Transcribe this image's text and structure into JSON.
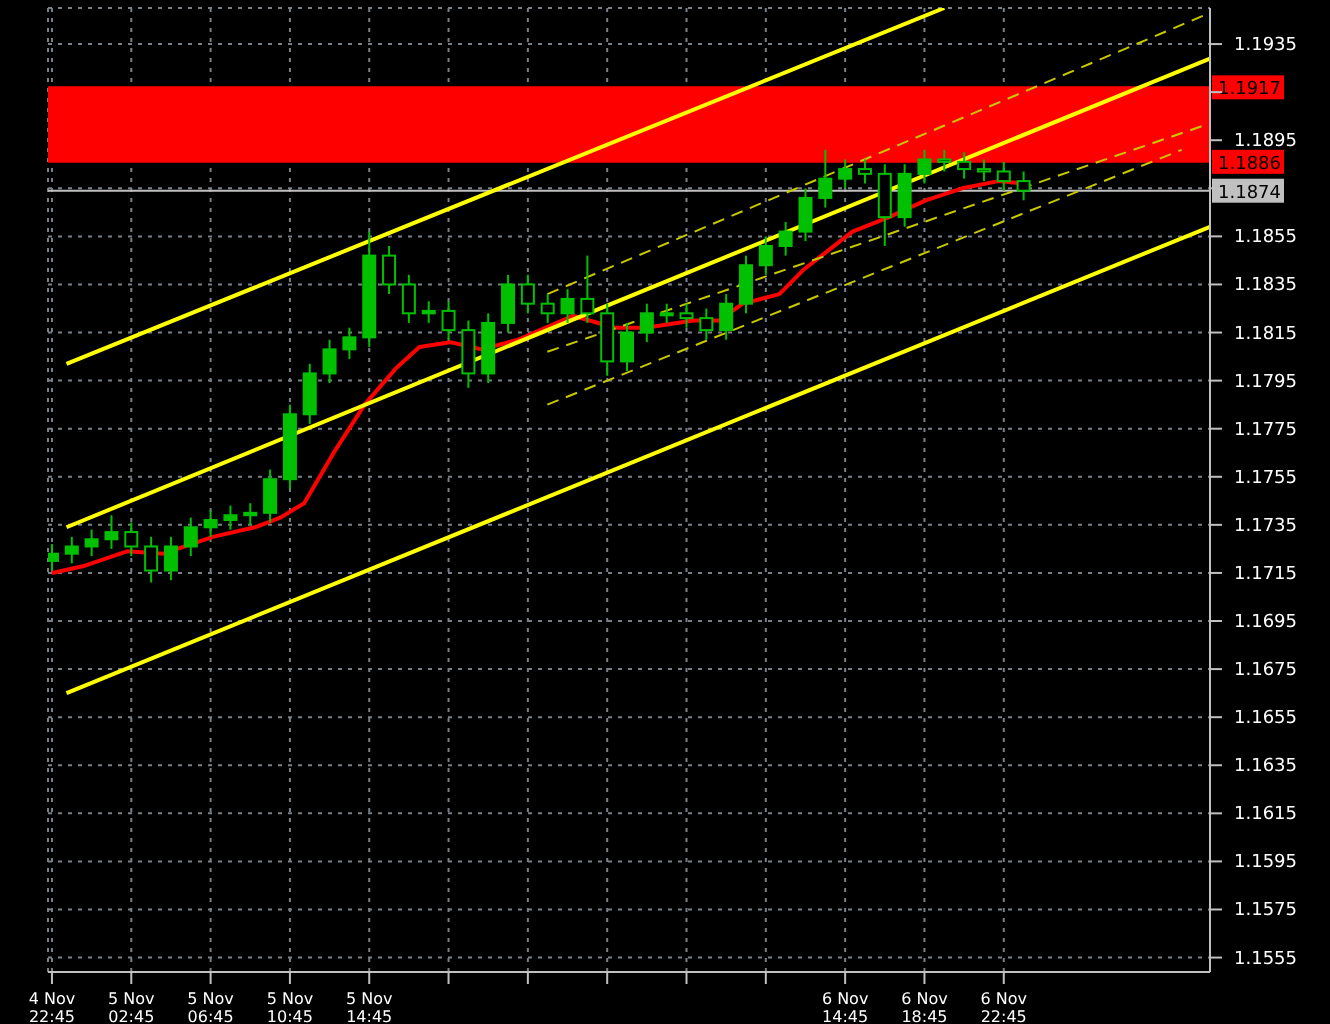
{
  "chart_data": {
    "type": "candlestick",
    "color": "#00c000",
    "grid": true,
    "xlim": [
      "--11-04T22:33",
      "--11-07T09:09"
    ],
    "xticks": [
      {
        "value": "--11-04T22:45",
        "label": "4 Nov 22:45"
      },
      {
        "value": "--11-05T02:45",
        "label": "5 Nov 02:45"
      },
      {
        "value": "--11-05T06:45",
        "label": "5 Nov 06:45"
      },
      {
        "value": "--11-05T10:45",
        "label": "5 Nov 10:45"
      },
      {
        "value": "--11-05T14:45",
        "label": "5 Nov 14:45"
      },
      {
        "value": "--11-05T18:45",
        "label": null
      },
      {
        "value": "--11-05T22:45",
        "label": null
      },
      {
        "value": "--11-06T02:45",
        "label": null
      },
      {
        "value": "--11-06T06:45",
        "label": null
      },
      {
        "value": "--11-06T10:45",
        "label": null
      },
      {
        "value": "--11-06T14:45",
        "label": "6 Nov 14:45"
      },
      {
        "value": "--11-06T18:45",
        "label": "6 Nov 18:45"
      },
      {
        "value": "--11-06T22:45",
        "label": "6 Nov 22:45"
      }
    ],
    "ylim": [
      1.1549,
      1.195
    ],
    "yticks": [
      1.1555,
      1.1575,
      1.1595,
      1.1615,
      1.1635,
      1.1655,
      1.1675,
      1.1695,
      1.1715,
      1.1735,
      1.1755,
      1.1775,
      1.1795,
      1.1815,
      1.1835,
      1.1855,
      {
        "value": 1.1875,
        "label": null
      },
      1.1895,
      {
        "value": 1.1915,
        "label": null
      },
      1.1935
    ],
    "bands": [
      {
        "axis": "y",
        "from": 1.1886,
        "to": 1.1917,
        "color": "#ff0000"
      }
    ],
    "ref_lines": [
      {
        "axis": "y",
        "value": 1.1917,
        "label": "1.1917",
        "color": "#ff0000"
      },
      {
        "axis": "y",
        "value": 1.1886,
        "label": "1.1886",
        "color": "#ff0000"
      },
      {
        "axis": "y",
        "value": 1.1874,
        "label": "1.1874",
        "color": "#c0c0c0"
      }
    ],
    "x": [
      "--11-04T22:45",
      "--11-04T23:45",
      "--11-05T00:45",
      "--11-05T01:45",
      "--11-05T02:45",
      "--11-05T03:45",
      "--11-05T04:45",
      "--11-05T05:45",
      "--11-05T06:45",
      "--11-05T07:45",
      "--11-05T08:45",
      "--11-05T09:45",
      "--11-05T10:45",
      "--11-05T11:45",
      "--11-05T12:45",
      "--11-05T13:45",
      "--11-05T14:45",
      "--11-05T15:45",
      "--11-05T16:45",
      "--11-05T17:45",
      "--11-05T18:45",
      "--11-05T19:45",
      "--11-05T20:45",
      "--11-05T21:45",
      "--11-05T22:45",
      "--11-05T23:45",
      "--11-06T00:45",
      "--11-06T01:45",
      "--11-06T02:45",
      "--11-06T03:45",
      "--11-06T04:45",
      "--11-06T05:45",
      "--11-06T06:45",
      "--11-06T07:45",
      "--11-06T08:45",
      "--11-06T09:45",
      "--11-06T10:45",
      "--11-06T11:45",
      "--11-06T12:45",
      "--11-06T13:45",
      "--11-06T14:45",
      "--11-06T15:45",
      "--11-06T16:45",
      "--11-06T17:45",
      "--11-06T18:45",
      "--11-06T19:45",
      "--11-06T20:45",
      "--11-06T21:45",
      "--11-06T22:45",
      "--11-06T23:45"
    ],
    "ohlc": [
      [
        1.172,
        1.1727,
        1.1716,
        1.1723
      ],
      [
        1.1723,
        1.173,
        1.1719,
        1.1726
      ],
      [
        1.1726,
        1.1733,
        1.1722,
        1.1729
      ],
      [
        1.1729,
        1.1739,
        1.1725,
        1.1732
      ],
      [
        1.1732,
        1.1736,
        1.1722,
        1.1726
      ],
      [
        1.1726,
        1.173,
        1.1711,
        1.1716
      ],
      [
        1.1716,
        1.173,
        1.1712,
        1.1726
      ],
      [
        1.1726,
        1.1738,
        1.1722,
        1.1734
      ],
      [
        1.1734,
        1.1741,
        1.173,
        1.1737
      ],
      [
        1.1737,
        1.1743,
        1.1733,
        1.1739
      ],
      [
        1.1739,
        1.1744,
        1.1735,
        1.174
      ],
      [
        1.174,
        1.1758,
        1.1736,
        1.1754
      ],
      [
        1.1754,
        1.1785,
        1.175,
        1.1781
      ],
      [
        1.1781,
        1.1802,
        1.1777,
        1.1798
      ],
      [
        1.1798,
        1.1812,
        1.1794,
        1.1808
      ],
      [
        1.1808,
        1.1817,
        1.1804,
        1.1813
      ],
      [
        1.1813,
        1.1857,
        1.1809,
        1.1847
      ],
      [
        1.1847,
        1.1851,
        1.1831,
        1.1835
      ],
      [
        1.1835,
        1.1839,
        1.1819,
        1.1823
      ],
      [
        1.1823,
        1.1828,
        1.1819,
        1.1824
      ],
      [
        1.1824,
        1.1828,
        1.1812,
        1.1816
      ],
      [
        1.1816,
        1.182,
        1.1792,
        1.1798
      ],
      [
        1.1798,
        1.1823,
        1.1794,
        1.1819
      ],
      [
        1.1819,
        1.1839,
        1.1815,
        1.1835
      ],
      [
        1.1835,
        1.1839,
        1.1823,
        1.1827
      ],
      [
        1.1827,
        1.1831,
        1.1819,
        1.1823
      ],
      [
        1.1823,
        1.1833,
        1.1819,
        1.1829
      ],
      [
        1.1829,
        1.1847,
        1.1819,
        1.1823
      ],
      [
        1.1823,
        1.1827,
        1.1797,
        1.1803
      ],
      [
        1.1803,
        1.1819,
        1.1799,
        1.1815
      ],
      [
        1.1815,
        1.1827,
        1.1811,
        1.1823
      ],
      [
        1.1823,
        1.1827,
        1.1819,
        1.1823
      ],
      [
        1.1823,
        1.1827,
        1.1817,
        1.1821
      ],
      [
        1.1821,
        1.1825,
        1.1812,
        1.1816
      ],
      [
        1.1816,
        1.1831,
        1.1812,
        1.1827
      ],
      [
        1.1827,
        1.1847,
        1.1823,
        1.1843
      ],
      [
        1.1843,
        1.1855,
        1.1839,
        1.1851
      ],
      [
        1.1851,
        1.1861,
        1.1847,
        1.1857
      ],
      [
        1.1857,
        1.1875,
        1.1853,
        1.1871
      ],
      [
        1.1871,
        1.1891,
        1.1867,
        1.1879
      ],
      [
        1.1879,
        1.1887,
        1.1875,
        1.1883
      ],
      [
        1.1883,
        1.1887,
        1.1877,
        1.1881
      ],
      [
        1.1881,
        1.1885,
        1.1851,
        1.1863
      ],
      [
        1.1863,
        1.1885,
        1.1859,
        1.1881
      ],
      [
        1.1881,
        1.1891,
        1.1877,
        1.1887
      ],
      [
        1.1887,
        1.1891,
        1.1882,
        1.1886
      ],
      [
        1.1886,
        1.189,
        1.1879,
        1.1883
      ],
      [
        1.1883,
        1.1887,
        1.1878,
        1.1882
      ],
      [
        1.1882,
        1.1886,
        1.1874,
        1.1878
      ],
      [
        1.1878,
        1.1882,
        1.187,
        1.1874
      ]
    ],
    "series": [
      {
        "type": "line",
        "color": "#ff0000",
        "x": [
          "--11-04T22:45",
          "--11-05T00:25",
          "--11-05T02:32",
          "--11-05T04:22",
          "--11-05T06:52",
          "--11-05T08:59",
          "--11-05T10:16",
          "--11-05T11:28",
          "--11-05T13:02",
          "--11-05T14:31",
          "--11-05T16:05",
          "--11-05T17:17",
          "--11-05T18:50",
          "--11-05T20:25",
          "--11-05T22:15",
          "--11-06T01:01",
          "--11-06T03:08",
          "--11-06T04:42",
          "--11-06T07:06",
          "--11-06T08:23",
          "--11-06T09:35",
          "--11-06T11:26",
          "--11-06T12:38",
          "--11-06T15:07",
          "--11-06T16:58",
          "--11-06T18:49",
          "--11-06T20:39",
          "--11-06T22:29",
          "--11-06T23:41"
        ],
        "values": [
          1.1715,
          1.1718,
          1.1724,
          1.1723,
          1.173,
          1.1734,
          1.1738,
          1.1744,
          1.1766,
          1.1785,
          1.18,
          1.1809,
          1.1811,
          1.1808,
          1.1812,
          1.1822,
          1.1817,
          1.1817,
          1.182,
          1.182,
          1.1827,
          1.1831,
          1.1841,
          1.1857,
          1.1863,
          1.187,
          1.1875,
          1.1878,
          1.1877
        ]
      },
      {
        "type": "line",
        "color": "#ffff00",
        "x": [
          "--11-04T23:29",
          "--11-06T19:45"
        ],
        "values": [
          1.1802,
          1.195
        ]
      },
      {
        "type": "line",
        "color": "#ffff00",
        "x": [
          "--11-04T23:29",
          "--11-07T09:09"
        ],
        "values": [
          1.1734,
          1.1929
        ]
      },
      {
        "type": "line",
        "color": "#ffff00",
        "x": [
          "--11-04T23:29",
          "--11-07T09:09"
        ],
        "values": [
          1.1665,
          1.1859
        ]
      },
      {
        "type": "line",
        "color": "#c8c800",
        "line_style": "dashed",
        "x": [
          "--11-05T23:44",
          "--11-07T09:09"
        ],
        "values": [
          1.1831,
          1.1948
        ]
      },
      {
        "type": "line",
        "color": "#c8c800",
        "line_style": "dashed",
        "x": [
          "--11-05T23:44",
          "--11-07T09:09"
        ],
        "values": [
          1.1807,
          1.1902
        ]
      },
      {
        "type": "line",
        "color": "#c8c800",
        "line_style": "dashed",
        "x": [
          "--11-05T23:44",
          "--11-07T07:43"
        ],
        "values": [
          1.1785,
          1.1891
        ]
      }
    ]
  }
}
